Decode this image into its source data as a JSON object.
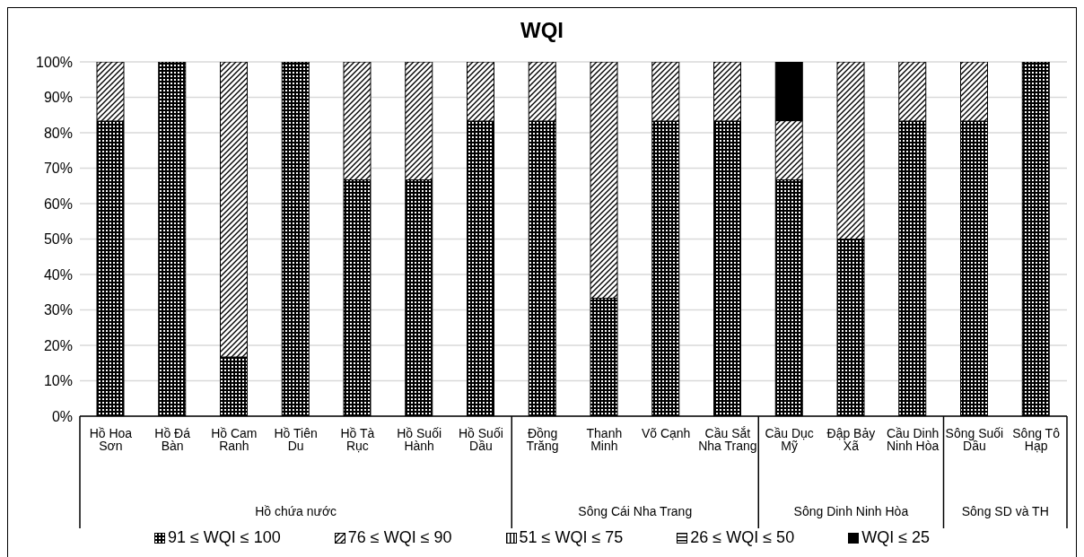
{
  "chart_data": {
    "type": "bar",
    "title": "WQI",
    "stacked": true,
    "categories": [
      "Hồ Hoa Sơn",
      "Hồ Đá Bàn",
      "Hồ Cam Ranh",
      "Hồ Tiên Du",
      "Hồ Tà Rục",
      "Hồ Suối Hành",
      "Hồ Suối Dầu",
      "Đồng Trăng",
      "Thanh Minh",
      "Võ Cạnh",
      "Cầu Sắt Nha Trang",
      "Cầu Dục Mỹ",
      "Đập Bảy Xã",
      "Cầu Dinh Ninh Hòa",
      "Sông Suối Dầu",
      "Sông Tô Hạp"
    ],
    "series": [
      {
        "name": "91 ≤ WQI ≤ 100",
        "color": "#000000",
        "values": [
          83.3,
          100,
          16.7,
          100,
          66.7,
          66.7,
          83.3,
          83.3,
          33.3,
          83.3,
          83.3,
          66.7,
          50,
          83.3,
          83.3,
          100
        ]
      },
      {
        "name": "76 ≤ WQI ≤ 90",
        "color": "#000000",
        "values": [
          16.7,
          0,
          83.3,
          0,
          33.3,
          33.3,
          16.7,
          16.7,
          66.7,
          16.7,
          16.7,
          16.7,
          50,
          16.7,
          16.7,
          0
        ]
      },
      {
        "name": "51 ≤ WQI ≤ 75",
        "color": "#000000",
        "values": [
          0,
          0,
          0,
          0,
          0,
          0,
          0,
          0,
          0,
          0,
          0,
          0,
          0,
          0,
          0,
          0
        ]
      },
      {
        "name": "26 ≤ WQI ≤ 50",
        "color": "#000000",
        "values": [
          0,
          0,
          0,
          0,
          0,
          0,
          0,
          0,
          0,
          0,
          0,
          0,
          0,
          0,
          0,
          0
        ]
      },
      {
        "name": "WQI ≤ 25",
        "color": "#000000",
        "values": [
          0,
          0,
          0,
          0,
          0,
          0,
          0,
          0,
          0,
          0,
          0,
          16.7,
          0,
          0,
          0,
          0
        ]
      }
    ],
    "ylim": [
      0,
      100
    ],
    "yticks": [
      {
        "value": 0,
        "label": "0%"
      },
      {
        "value": 10,
        "label": "10%"
      },
      {
        "value": 20,
        "label": "20%"
      },
      {
        "value": 30,
        "label": "30%"
      },
      {
        "value": 40,
        "label": "40%"
      },
      {
        "value": 50,
        "label": "50%"
      },
      {
        "value": 60,
        "label": "60%"
      },
      {
        "value": 70,
        "label": "70%"
      },
      {
        "value": 80,
        "label": "80%"
      },
      {
        "value": 90,
        "label": "90%"
      },
      {
        "value": 100,
        "label": "100%"
      }
    ],
    "grid": "y",
    "legend": "bottom",
    "annotations": [
      "Hồ chứa nước",
      "Sông Cái Nha Trang",
      "Sông Dinh Ninh Hòa",
      "Sông SD và TH"
    ]
  }
}
